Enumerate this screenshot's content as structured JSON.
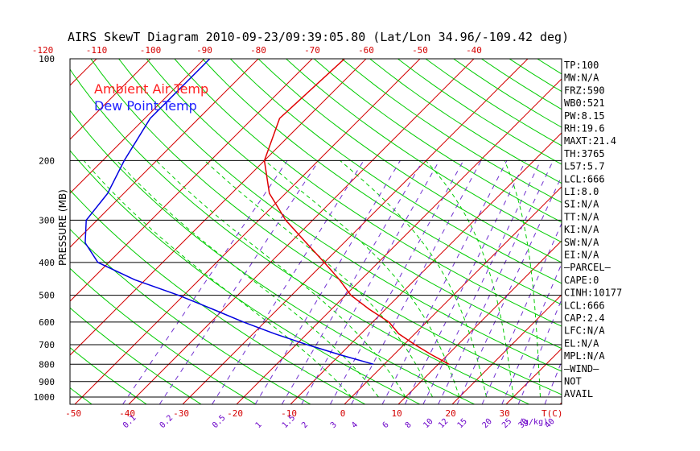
{
  "title": "AIRS SkewT Diagram 2010-09-23/09:39:05.80 (Lat/Lon 34.96/-109.42 deg)",
  "legend": {
    "air_temp": "Ambient Air Temp",
    "dew_point": "Dew Point Temp"
  },
  "y_axis_label": "PRESSURE (MB)",
  "top_temp_ticks": [
    "-120",
    "-110",
    "-100",
    "-90",
    "-80",
    "-70",
    "-60",
    "-50",
    "-40"
  ],
  "bottom_temp_ticks": [
    "-50",
    "-40",
    "-30",
    "-20",
    "-10",
    "0",
    "10",
    "20",
    "30"
  ],
  "bottom_temp_unit": "T(C)",
  "mixing_ratio_ticks": [
    "0.1",
    "0.2",
    "0.5",
    "1",
    "1.5",
    "2",
    "3",
    "4",
    "6",
    "8",
    "10",
    "12",
    "15",
    "20",
    "25",
    "30",
    "40"
  ],
  "mixing_ratio_unit": "(g/kg)",
  "pressure_ticks": [
    "100",
    "200",
    "300",
    "400",
    "500",
    "600",
    "700",
    "800",
    "900",
    "1000"
  ],
  "side_panel": [
    "TP:100",
    "MW:N/A",
    "FRZ:590",
    "WB0:521",
    "PW:8.15",
    "RH:19.6",
    "MAXT:21.4",
    "TH:3765",
    "L57:5.7",
    "LCL:666",
    "LI:8.0",
    "SI:N/A",
    "TT:N/A",
    "KI:N/A",
    "SW:N/A",
    "EI:N/A",
    "–PARCEL–",
    "CAPE:0",
    "CINH:10177",
    "LCL:666",
    "CAP:2.4",
    "LFC:N/A",
    "EL:N/A",
    "MPL:N/A",
    "–WIND–",
    "NOT",
    "AVAIL"
  ],
  "colors": {
    "isotherm": "#d40000",
    "dry_adiabat": "#00cc00",
    "moist_adiabat": "#00cc00",
    "mixing_ratio": "#7030d0",
    "isobar": "#000000",
    "air_temp": "#e00000",
    "dew_point": "#0000e0"
  },
  "chart_data": {
    "type": "line",
    "title": "AIRS SkewT Diagram 2010-09-23/09:39:05.80 (Lat/Lon 34.96/-109.42 deg)",
    "ylabel": "PRESSURE (MB)",
    "xlabel": "T(C)",
    "y_scale": "log",
    "y_inverted": true,
    "ylim": [
      1000,
      100
    ],
    "series": [
      {
        "name": "Ambient Air Temp",
        "pressure": [
          100,
          150,
          200,
          250,
          300,
          350,
          400,
          450,
          500,
          550,
          600,
          650,
          700,
          750,
          800
        ],
        "temperature": [
          -64,
          -65,
          -60,
          -53,
          -45,
          -37,
          -30,
          -24,
          -19,
          -13,
          -7,
          -3,
          2,
          7,
          12
        ]
      },
      {
        "name": "Dew Point Temp",
        "pressure": [
          100,
          150,
          200,
          250,
          300,
          350,
          400,
          450,
          500,
          550,
          600,
          650,
          700,
          750,
          800
        ],
        "temperature": [
          -89,
          -89,
          -86,
          -83,
          -82,
          -78,
          -72,
          -62,
          -51,
          -42,
          -34,
          -26,
          -18,
          -10,
          -2
        ]
      }
    ]
  }
}
